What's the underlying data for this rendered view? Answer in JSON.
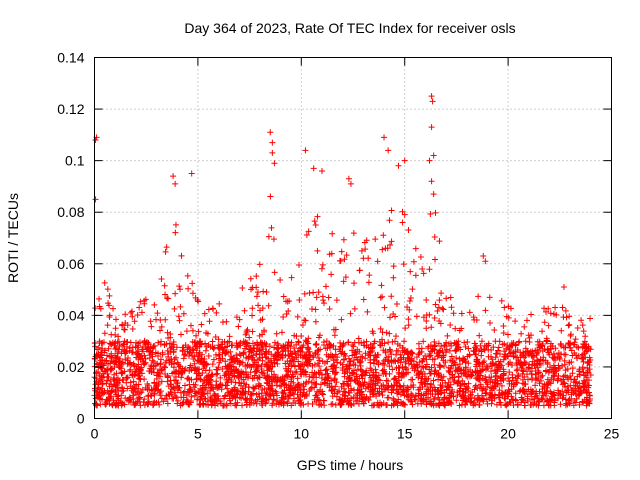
{
  "chart_data": {
    "type": "scatter",
    "title": "Day 364 of 2023, Rate Of TEC Index for receiver osls",
    "xlabel": "GPS time / hours",
    "ylabel": "ROTI / TECUs",
    "xlim": [
      0,
      25
    ],
    "ylim": [
      0,
      0.14
    ],
    "xticks": [
      0,
      5,
      10,
      15,
      20,
      25
    ],
    "xtick_labels": [
      "0",
      "5",
      "10",
      "15",
      "20",
      "25"
    ],
    "yticks": [
      0,
      0.02,
      0.04,
      0.06,
      0.08,
      0.1,
      0.12,
      0.14
    ],
    "ytick_labels": [
      "0",
      "0.02",
      "0.04",
      "0.06",
      "0.08",
      "0.1",
      "0.12",
      "0.14"
    ],
    "grid": true,
    "marker": "plus",
    "color": "#ff0000",
    "x_data_range": [
      0,
      24
    ],
    "baseline_band": [
      0.005,
      0.03
    ],
    "envelope": {
      "hours": [
        0,
        0.5,
        1,
        2,
        3,
        3.8,
        4.5,
        5,
        6,
        7,
        8,
        8.5,
        9,
        10,
        10.5,
        11,
        12,
        12.5,
        13,
        14,
        14.5,
        15,
        16,
        16.3,
        17,
        18,
        19,
        20,
        21,
        22,
        23,
        24
      ],
      "upper": [
        0.06,
        0.055,
        0.04,
        0.045,
        0.05,
        0.08,
        0.06,
        0.05,
        0.045,
        0.05,
        0.06,
        0.09,
        0.06,
        0.07,
        0.085,
        0.075,
        0.07,
        0.08,
        0.07,
        0.075,
        0.085,
        0.08,
        0.06,
        0.1,
        0.05,
        0.045,
        0.05,
        0.045,
        0.045,
        0.045,
        0.045,
        0.04
      ]
    },
    "peaks": [
      {
        "x": 0.05,
        "y": 0.108
      },
      {
        "x": 0.1,
        "y": 0.109
      },
      {
        "x": 0.05,
        "y": 0.085
      },
      {
        "x": 3.8,
        "y": 0.094
      },
      {
        "x": 3.9,
        "y": 0.091
      },
      {
        "x": 4.7,
        "y": 0.095
      },
      {
        "x": 8.5,
        "y": 0.111
      },
      {
        "x": 8.6,
        "y": 0.107
      },
      {
        "x": 8.6,
        "y": 0.103
      },
      {
        "x": 8.7,
        "y": 0.099
      },
      {
        "x": 10.2,
        "y": 0.104
      },
      {
        "x": 10.6,
        "y": 0.097
      },
      {
        "x": 11.0,
        "y": 0.096
      },
      {
        "x": 12.3,
        "y": 0.093
      },
      {
        "x": 12.4,
        "y": 0.091
      },
      {
        "x": 14.0,
        "y": 0.109
      },
      {
        "x": 14.2,
        "y": 0.104
      },
      {
        "x": 15.0,
        "y": 0.1
      },
      {
        "x": 14.7,
        "y": 0.098
      },
      {
        "x": 16.3,
        "y": 0.125
      },
      {
        "x": 16.35,
        "y": 0.123
      },
      {
        "x": 16.3,
        "y": 0.113
      },
      {
        "x": 16.4,
        "y": 0.102
      },
      {
        "x": 16.2,
        "y": 0.1
      },
      {
        "x": 16.3,
        "y": 0.092
      },
      {
        "x": 16.4,
        "y": 0.087
      },
      {
        "x": 18.8,
        "y": 0.063
      },
      {
        "x": 18.9,
        "y": 0.061
      },
      {
        "x": 22.7,
        "y": 0.051
      }
    ]
  }
}
